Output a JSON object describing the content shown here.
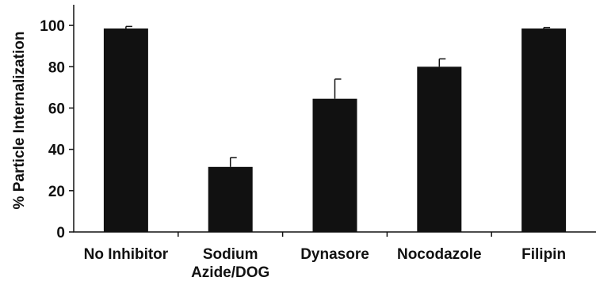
{
  "chart_data": {
    "type": "bar",
    "ylabel": "% Particle Internalization",
    "xlabel": "",
    "ylim": [
      0,
      110
    ],
    "yticks": [
      0,
      20,
      40,
      60,
      80,
      100
    ],
    "grid": false,
    "categories": [
      [
        "No Inhibitor"
      ],
      [
        "Sodium",
        "Azide/DOG"
      ],
      [
        "Dynasore"
      ],
      [
        "Nocodazole"
      ],
      [
        "Filipin"
      ]
    ],
    "values": [
      98.5,
      31.5,
      64.5,
      80,
      98.5
    ],
    "error_upper": [
      1,
      4.5,
      9.5,
      3.8,
      0.5
    ],
    "colors": {
      "bar": "#111111",
      "axis": "#111111"
    }
  }
}
